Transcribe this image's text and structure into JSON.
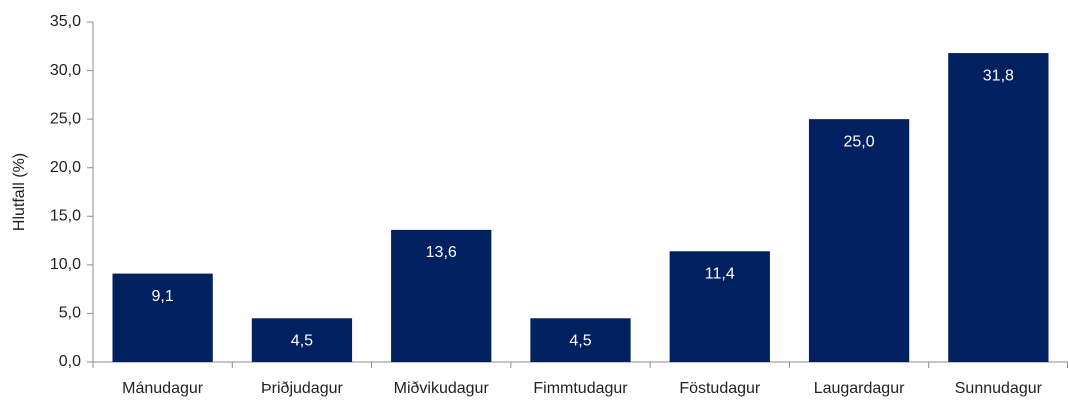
{
  "chart_data": {
    "type": "bar",
    "y_label": "Hlutfall (%)",
    "categories": [
      "Mánudagur",
      "Þriðjudagur",
      "Miðvikudagur",
      "Fimmtudagur",
      "Föstudagur",
      "Laugardagur",
      "Sunnudagur"
    ],
    "values": [
      9.1,
      4.5,
      13.6,
      4.5,
      11.4,
      25.0,
      31.8
    ],
    "value_labels": [
      "9,1",
      "4,5",
      "13,6",
      "4,5",
      "11,4",
      "25,0",
      "31,8"
    ],
    "color": "#002060",
    "ylim": [
      0,
      35
    ],
    "yticks": [
      {
        "value": 0,
        "label": "0,0"
      },
      {
        "value": 5,
        "label": "5,0"
      },
      {
        "value": 10,
        "label": "10,0"
      },
      {
        "value": 15,
        "label": "15,0"
      },
      {
        "value": 20,
        "label": "20,0"
      },
      {
        "value": 25,
        "label": "25,0"
      },
      {
        "value": 30,
        "label": "30,0"
      },
      {
        "value": 35,
        "label": "35,0"
      }
    ],
    "grid": false
  }
}
